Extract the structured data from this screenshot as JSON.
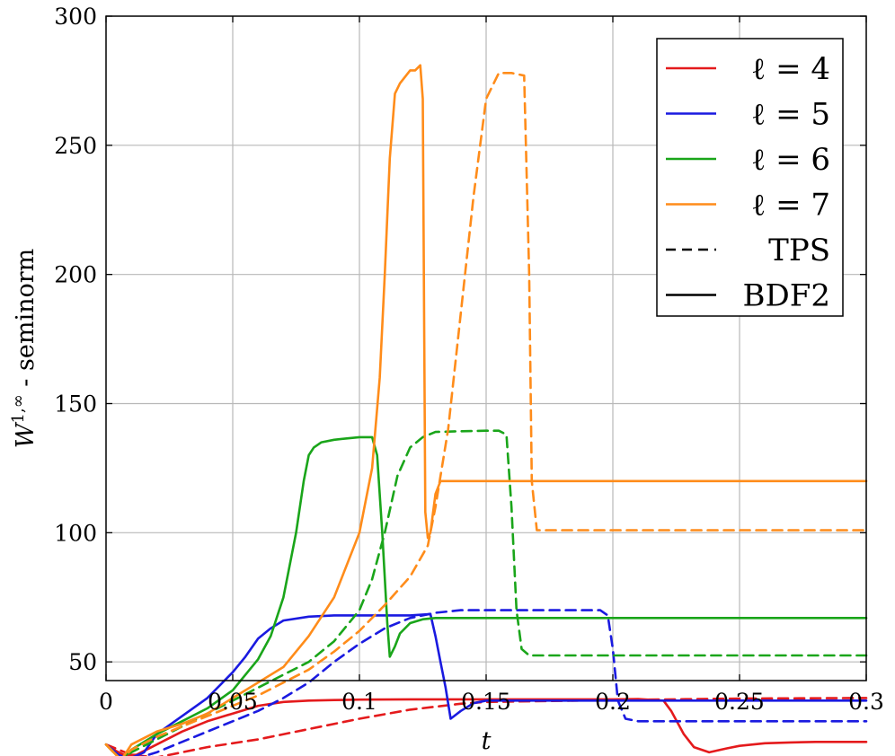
{
  "chart_data": {
    "type": "line",
    "xlabel": "t",
    "ylabel_base": "W",
    "ylabel_sup": "1,∞",
    "ylabel_rest": " - seminorm",
    "xlim": [
      0,
      0.3
    ],
    "ylim": [
      0,
      300
    ],
    "xticks": [
      0,
      0.05,
      0.1,
      0.15,
      0.2,
      0.25,
      0.3
    ],
    "xtick_labels": [
      "0",
      "0.05",
      "0.1",
      "0.15",
      "0.2",
      "0.25",
      "0.3"
    ],
    "yticks": [
      50,
      100,
      150,
      200,
      250,
      300
    ],
    "ytick_labels": [
      "50",
      "100",
      "150",
      "200",
      "250",
      "300"
    ],
    "grid": true,
    "legend_position": "top-right",
    "legend": [
      {
        "label": "ℓ = 4",
        "color": "#e41a1c",
        "style": "solid"
      },
      {
        "label": "ℓ = 5",
        "color": "#1a1ae0",
        "style": "solid"
      },
      {
        "label": "ℓ = 6",
        "color": "#1aa51a",
        "style": "solid"
      },
      {
        "label": "ℓ = 7",
        "color": "#ff8c1a",
        "style": "solid"
      },
      {
        "label": "TPS",
        "color": "#000000",
        "style": "dashed"
      },
      {
        "label": "BDF2",
        "color": "#000000",
        "style": "solid"
      }
    ],
    "series": [
      {
        "level": 4,
        "method": "BDF2",
        "color": "#e41a1c",
        "style": "solid",
        "x": [
          0,
          0.003,
          0.007,
          0.012,
          0.02,
          0.03,
          0.04,
          0.05,
          0.06,
          0.07,
          0.08,
          0.09,
          0.1,
          0.12,
          0.15,
          0.18,
          0.2,
          0.21,
          0.22,
          0.223,
          0.228,
          0.232,
          0.238,
          0.245,
          0.25,
          0.26,
          0.27,
          0.28,
          0.3
        ],
        "y": [
          18,
          16,
          14,
          14,
          18,
          23,
          27,
          30,
          33,
          34.5,
          35,
          35.2,
          35.4,
          35.5,
          35.5,
          35.5,
          35.5,
          35.6,
          35,
          31,
          22,
          17,
          15,
          16.5,
          17.5,
          18.5,
          18.8,
          19,
          19
        ]
      },
      {
        "level": 4,
        "method": "TPS",
        "color": "#e41a1c",
        "style": "dashed",
        "x": [
          0,
          0.005,
          0.01,
          0.02,
          0.03,
          0.04,
          0.06,
          0.08,
          0.1,
          0.12,
          0.14,
          0.15,
          0.2,
          0.25,
          0.3
        ],
        "y": [
          18,
          16,
          14,
          13,
          15,
          17,
          20,
          24,
          28,
          31.5,
          33.8,
          34.5,
          35.2,
          35.8,
          36
        ]
      },
      {
        "level": 5,
        "method": "BDF2",
        "color": "#1a1ae0",
        "style": "solid",
        "x": [
          0,
          0.005,
          0.008,
          0.015,
          0.02,
          0.03,
          0.04,
          0.05,
          0.055,
          0.06,
          0.065,
          0.07,
          0.08,
          0.09,
          0.1,
          0.11,
          0.12,
          0.128,
          0.13,
          0.132,
          0.134,
          0.136,
          0.14,
          0.145,
          0.15,
          0.2,
          0.25,
          0.3
        ],
        "y": [
          18,
          14,
          12,
          15,
          22,
          29,
          36,
          46,
          52,
          59,
          63,
          66,
          67.5,
          68,
          68,
          68,
          68,
          68.5,
          60,
          50,
          40,
          28,
          31,
          34,
          35,
          35,
          35,
          35
        ]
      },
      {
        "level": 5,
        "method": "TPS",
        "color": "#1a1ae0",
        "style": "dashed",
        "x": [
          0,
          0.005,
          0.01,
          0.02,
          0.03,
          0.04,
          0.05,
          0.06,
          0.07,
          0.08,
          0.09,
          0.1,
          0.11,
          0.12,
          0.13,
          0.14,
          0.15,
          0.16,
          0.17,
          0.18,
          0.19,
          0.195,
          0.198,
          0.2,
          0.202,
          0.205,
          0.21,
          0.25,
          0.3
        ],
        "y": [
          18,
          14,
          12,
          15,
          19,
          23,
          27,
          31,
          36,
          42,
          50,
          57,
          63,
          67,
          69,
          70,
          70,
          70,
          70,
          70,
          70,
          70,
          68,
          55,
          35,
          28,
          27,
          27,
          27
        ]
      },
      {
        "level": 6,
        "method": "BDF2",
        "color": "#1aa51a",
        "style": "solid",
        "x": [
          0,
          0.006,
          0.01,
          0.02,
          0.03,
          0.04,
          0.05,
          0.06,
          0.065,
          0.07,
          0.075,
          0.078,
          0.08,
          0.082,
          0.085,
          0.09,
          0.095,
          0.1,
          0.105,
          0.107,
          0.109,
          0.111,
          0.112,
          0.114,
          0.116,
          0.12,
          0.125,
          0.13,
          0.15,
          0.2,
          0.25,
          0.3
        ],
        "y": [
          18,
          12,
          16,
          22,
          27,
          32,
          39,
          51,
          60,
          75,
          100,
          120,
          130,
          133,
          135,
          136,
          136.5,
          137,
          137,
          130,
          100,
          65,
          52,
          56,
          61,
          65,
          66.5,
          67,
          67,
          67,
          67,
          67
        ]
      },
      {
        "level": 6,
        "method": "TPS",
        "color": "#1aa51a",
        "style": "dashed",
        "x": [
          0,
          0.006,
          0.01,
          0.02,
          0.03,
          0.04,
          0.05,
          0.06,
          0.07,
          0.08,
          0.09,
          0.1,
          0.105,
          0.11,
          0.115,
          0.12,
          0.125,
          0.13,
          0.14,
          0.15,
          0.155,
          0.158,
          0.16,
          0.162,
          0.164,
          0.167,
          0.17,
          0.2,
          0.25,
          0.3
        ],
        "y": [
          18,
          12,
          15,
          20,
          25,
          30,
          35,
          40,
          45,
          50,
          58,
          70,
          82,
          100,
          122,
          133,
          137,
          139,
          139.3,
          139.5,
          139.5,
          138,
          110,
          70,
          55,
          52.5,
          52.5,
          52.5,
          52.5,
          52.5
        ]
      },
      {
        "level": 7,
        "method": "BDF2",
        "color": "#ff8c1a",
        "style": "solid",
        "x": [
          0,
          0.006,
          0.01,
          0.02,
          0.03,
          0.04,
          0.05,
          0.06,
          0.07,
          0.08,
          0.09,
          0.1,
          0.105,
          0.108,
          0.11,
          0.112,
          0.114,
          0.116,
          0.12,
          0.122,
          0.124,
          0.125,
          0.126,
          0.127,
          0.128,
          0.13,
          0.132,
          0.135,
          0.15,
          0.2,
          0.25,
          0.3
        ],
        "y": [
          18,
          12,
          18,
          23,
          26,
          30,
          36,
          42,
          48,
          60,
          75,
          100,
          125,
          160,
          200,
          245,
          270,
          274,
          279,
          279,
          281,
          268,
          108,
          98,
          100,
          115,
          120,
          120,
          120,
          120,
          120,
          120
        ]
      },
      {
        "level": 7,
        "method": "TPS",
        "color": "#ff8c1a",
        "style": "dashed",
        "x": [
          0,
          0.006,
          0.01,
          0.02,
          0.03,
          0.04,
          0.05,
          0.06,
          0.07,
          0.08,
          0.09,
          0.1,
          0.11,
          0.12,
          0.127,
          0.13,
          0.135,
          0.14,
          0.145,
          0.15,
          0.155,
          0.16,
          0.165,
          0.167,
          0.168,
          0.17,
          0.175,
          0.2,
          0.25,
          0.3
        ],
        "y": [
          18,
          12,
          16,
          21,
          25,
          29,
          33,
          37,
          42,
          47,
          54,
          62,
          72,
          83,
          95,
          110,
          140,
          185,
          230,
          268,
          278,
          278,
          277,
          200,
          120,
          101,
          101,
          101,
          101,
          101
        ]
      }
    ]
  }
}
